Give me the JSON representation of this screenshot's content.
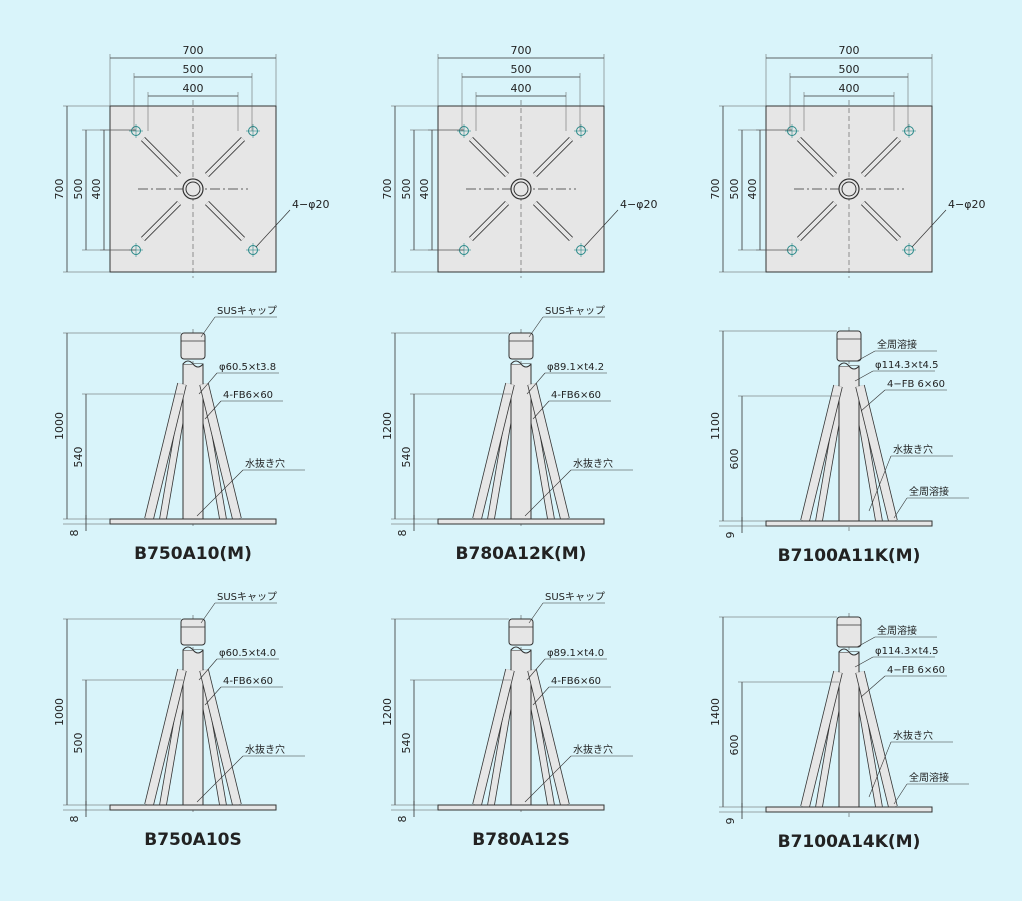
{
  "plans": [
    {
      "width_dims": [
        700,
        500,
        400
      ],
      "height_dims": [
        700,
        500,
        400
      ],
      "holes": "4−φ20"
    },
    {
      "width_dims": [
        700,
        500,
        400
      ],
      "height_dims": [
        700,
        500,
        400
      ],
      "holes": "4−φ20"
    },
    {
      "width_dims": [
        700,
        500,
        400
      ],
      "height_dims": [
        700,
        500,
        400
      ],
      "holes": "4−φ20"
    }
  ],
  "elevations": [
    {
      "model": "B750A10(M)",
      "callouts": [
        "SUSキャップ",
        "φ60.5×t3.8",
        "4-FB6×60",
        "水抜き穴"
      ],
      "dims": [
        1000,
        540,
        8
      ]
    },
    {
      "model": "B780A12K(M)",
      "callouts": [
        "SUSキャップ",
        "φ89.1×t4.2",
        "4-FB6×60",
        "水抜き穴"
      ],
      "dims": [
        1200,
        540,
        8
      ]
    },
    {
      "model": "B7100A11K(M)",
      "callouts": [
        "全周溶接",
        "φ114.3×t4.5",
        "4−FB 6×60",
        "水抜き穴",
        "全周溶接"
      ],
      "dims": [
        1100,
        600,
        9
      ]
    },
    {
      "model": "B750A10S",
      "callouts": [
        "SUSキャップ",
        "φ60.5×t4.0",
        "4-FB6×60",
        "水抜き穴"
      ],
      "dims": [
        1000,
        500,
        8
      ]
    },
    {
      "model": "B780A12S",
      "callouts": [
        "SUSキャップ",
        "φ89.1×t4.0",
        "4-FB6×60",
        "水抜き穴"
      ],
      "dims": [
        1200,
        540,
        8
      ]
    },
    {
      "model": "B7100A14K(M)",
      "callouts": [
        "全周溶接",
        "φ114.3×t4.5",
        "4−FB 6×60",
        "水抜き穴",
        "全周溶接"
      ],
      "dims": [
        1400,
        600,
        9
      ]
    }
  ]
}
